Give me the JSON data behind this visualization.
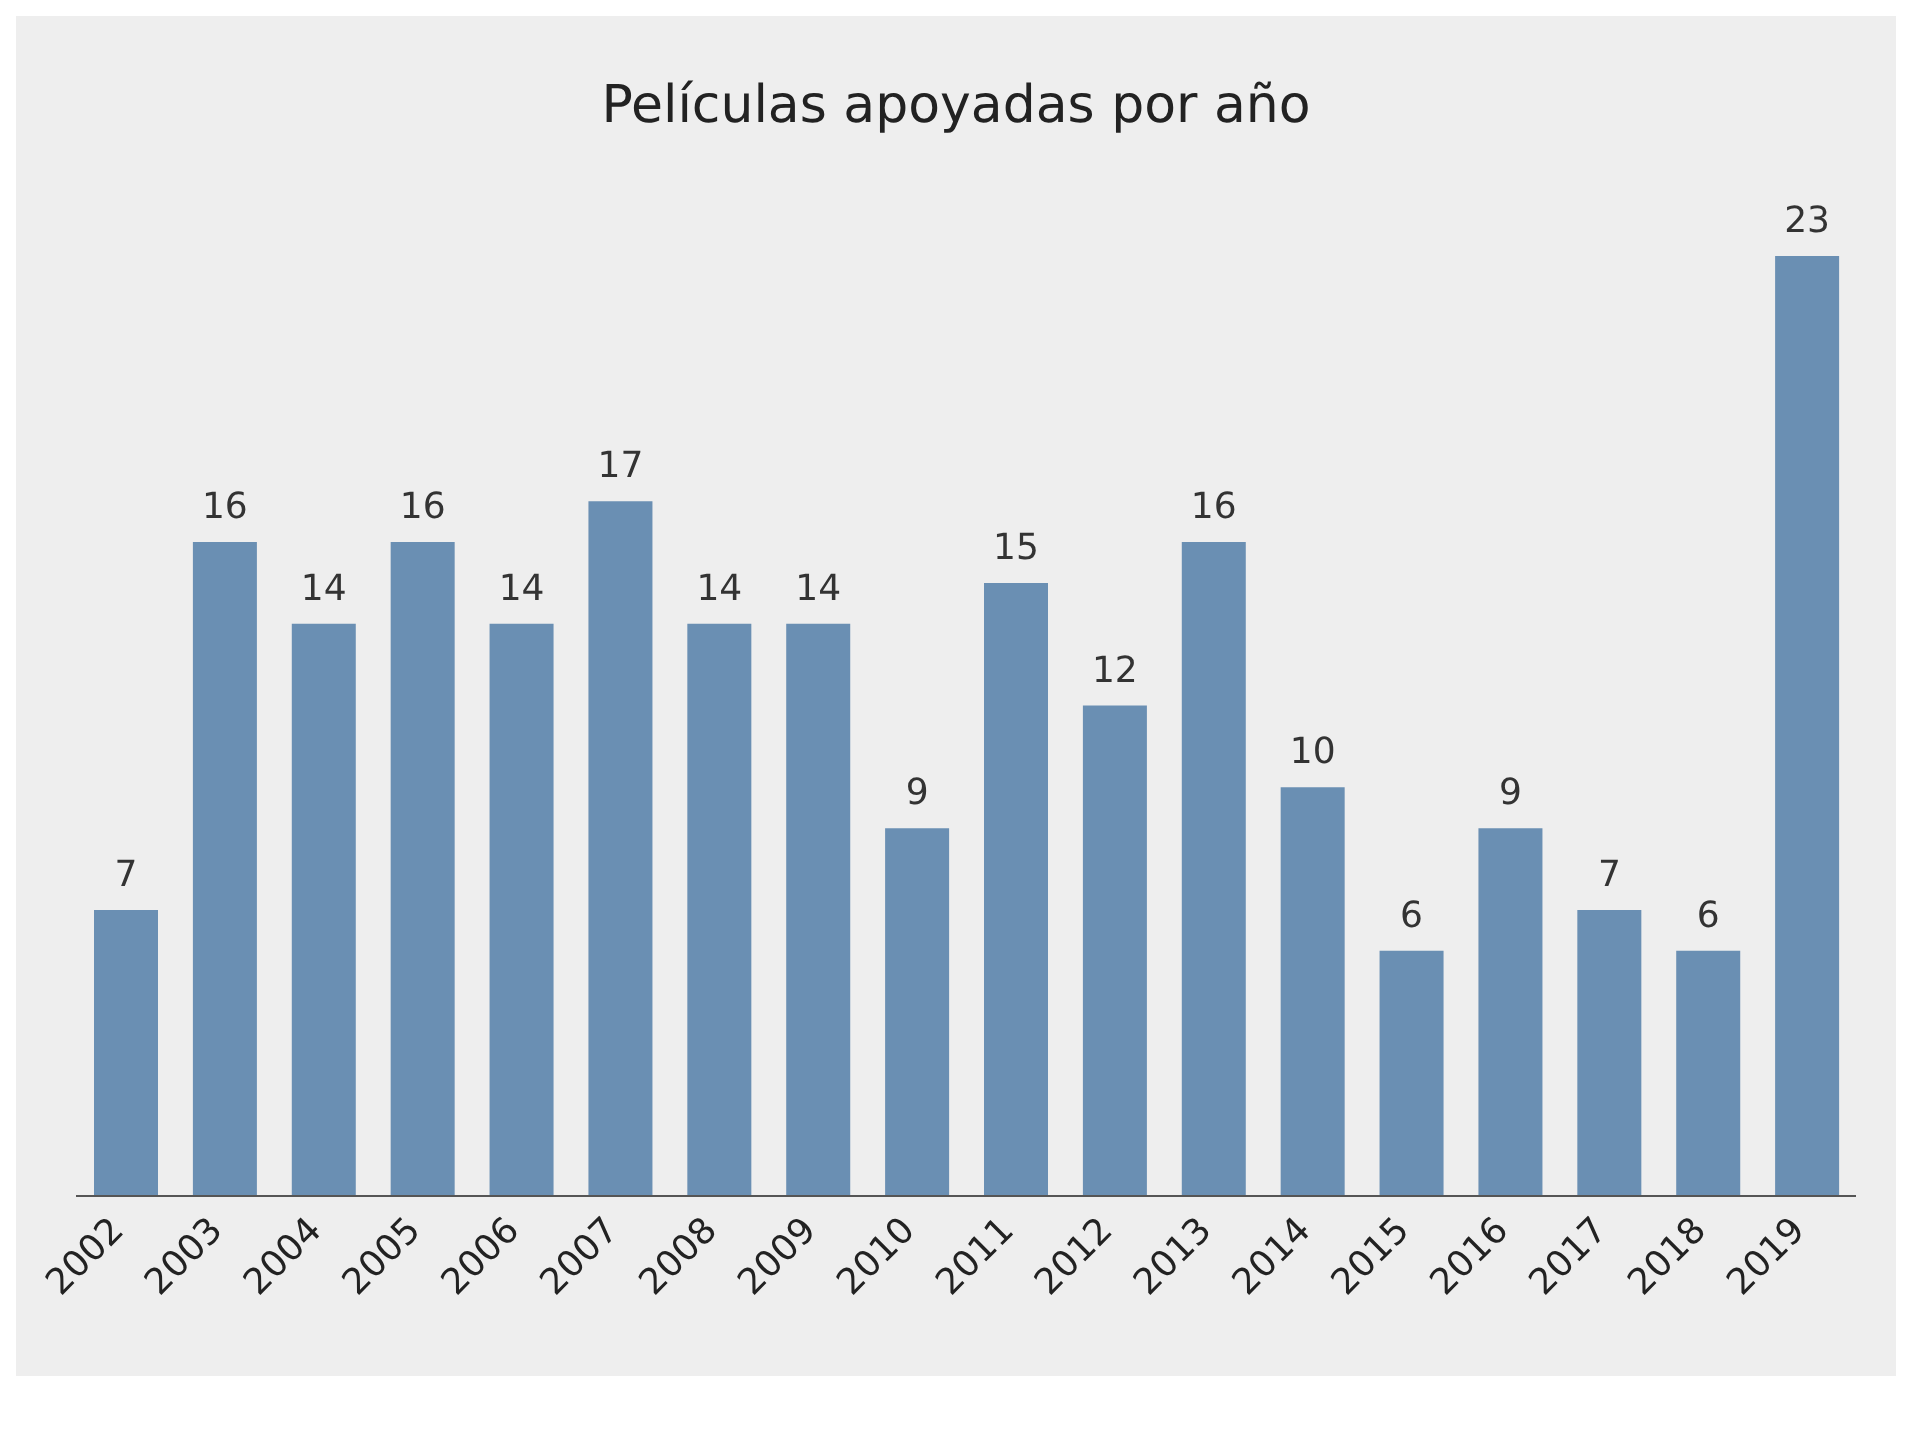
{
  "chart_data": {
    "type": "bar",
    "title": "Películas apoyadas por año",
    "categories": [
      "2002",
      "2003",
      "2004",
      "2005",
      "2006",
      "2007",
      "2008",
      "2009",
      "2010",
      "2011",
      "2012",
      "2013",
      "2014",
      "2015",
      "2016",
      "2017",
      "2018",
      "2019"
    ],
    "values": [
      7,
      16,
      14,
      16,
      14,
      17,
      14,
      14,
      9,
      15,
      12,
      16,
      10,
      6,
      9,
      7,
      6,
      23
    ],
    "color": "#6a8fb3",
    "data_labels": true,
    "grid": false,
    "legend": false
  }
}
